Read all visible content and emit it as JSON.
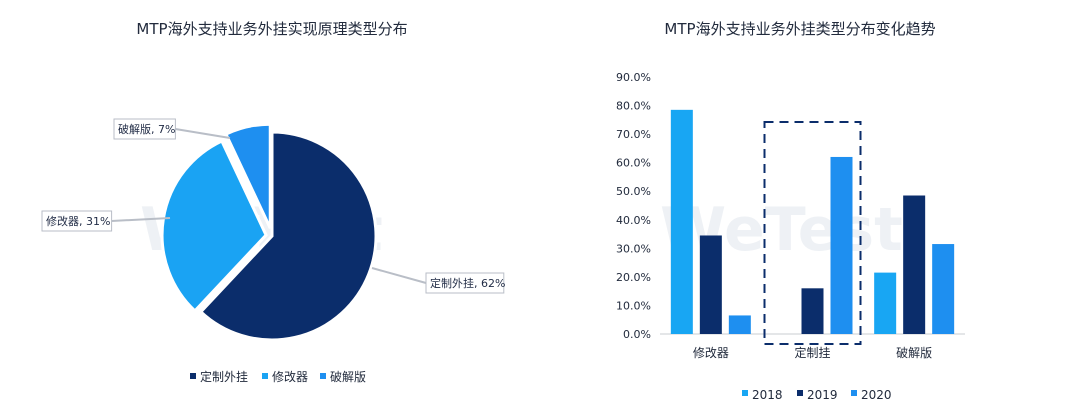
{
  "watermark": "WeTest",
  "colors": {
    "dark": "#0b2d6b",
    "mid": "#1aa3f3",
    "light": "#1e8ff0",
    "navy2019": "#0b2d6b",
    "blue2018": "#18a6f3",
    "blue2020": "#1e8ff0"
  },
  "chart_data": [
    {
      "type": "pie",
      "title": "MTP海外支持业务外挂实现原理类型分布",
      "slices": [
        {
          "name": "定制外挂",
          "value": 62,
          "label": "定制外挂, 62%",
          "color": "#0b2d6b"
        },
        {
          "name": "修改器",
          "value": 31,
          "label": "修改器, 31%",
          "color": "#1aa3f3"
        },
        {
          "name": "破解版",
          "value": 7,
          "label": "破解版, 7%",
          "color": "#1e8ff0"
        }
      ],
      "legend": [
        "定制外挂",
        "修改器",
        "破解版"
      ],
      "legend_position": "bottom"
    },
    {
      "type": "bar",
      "title": "MTP海外支持业务外挂类型分布变化趋势",
      "categories": [
        "修改器",
        "定制挂",
        "破解版"
      ],
      "series": [
        {
          "name": "2018",
          "values": [
            78.5,
            0,
            21.5
          ],
          "color": "#18a6f3"
        },
        {
          "name": "2019",
          "values": [
            34.5,
            16.0,
            48.5
          ],
          "color": "#0b2d6b"
        },
        {
          "name": "2020",
          "values": [
            6.5,
            62.0,
            31.5
          ],
          "color": "#1e8ff0"
        }
      ],
      "yticks": [
        "0.0%",
        "10.0%",
        "20.0%",
        "30.0%",
        "40.0%",
        "50.0%",
        "60.0%",
        "70.0%",
        "80.0%",
        "90.0%"
      ],
      "ylim": [
        0,
        90
      ],
      "highlight_category": "定制挂",
      "legend_position": "bottom"
    }
  ]
}
